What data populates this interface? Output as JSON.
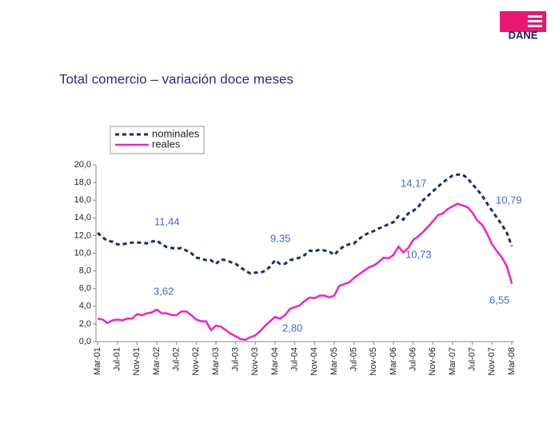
{
  "logo": "DANE",
  "chart_data": {
    "type": "line",
    "title": "Total comercio – variación doce meses",
    "categories": [
      "Mar-01",
      null,
      null,
      null,
      "Jul-01",
      null,
      null,
      null,
      "Nov-01",
      null,
      null,
      null,
      "Mar-02",
      null,
      null,
      null,
      "Jul-02",
      null,
      null,
      null,
      "Nov-02",
      null,
      null,
      null,
      "Mar-03",
      null,
      null,
      null,
      "Jul-03",
      null,
      null,
      null,
      "Nov-03",
      null,
      null,
      null,
      "Mar-04",
      null,
      null,
      null,
      "Jul-04",
      null,
      null,
      null,
      "Nov-04",
      null,
      null,
      null,
      "Mar-05",
      null,
      null,
      null,
      "Jul-05",
      null,
      null,
      null,
      "Nov-05",
      null,
      null,
      null,
      "Mar-06",
      null,
      null,
      null,
      "Jul-06",
      null,
      null,
      null,
      "Nov-06",
      null,
      null,
      null,
      "Mar-07",
      null,
      null,
      null,
      "Jul-07",
      null,
      null,
      null,
      "Nov-07",
      null,
      null,
      null,
      "Mar-08"
    ],
    "series": [
      {
        "name": "nominales",
        "color": "#1a2a6c",
        "line_style": "dashed",
        "values": [
          12.3,
          11.8,
          11.4,
          11.3,
          11.0,
          11.0,
          11.1,
          11.2,
          11.2,
          11.2,
          11.1,
          11.3,
          11.44,
          11.0,
          10.7,
          10.6,
          10.5,
          10.6,
          10.3,
          10.0,
          9.5,
          9.4,
          9.2,
          9.2,
          8.8,
          9.3,
          9.2,
          9.0,
          8.8,
          8.4,
          8.0,
          7.7,
          7.8,
          7.8,
          8.0,
          8.5,
          9.2,
          8.8,
          8.8,
          9.2,
          9.35,
          9.5,
          9.8,
          10.3,
          10.2,
          10.4,
          10.3,
          10.2,
          9.8,
          10.4,
          10.8,
          11.0,
          11.1,
          11.6,
          12.0,
          12.3,
          12.5,
          12.8,
          13.0,
          13.3,
          13.5,
          14.17,
          13.8,
          14.5,
          14.8,
          15.2,
          16.0,
          16.5,
          17.0,
          17.5,
          18.0,
          18.4,
          18.8,
          18.9,
          18.9,
          18.5,
          17.8,
          17.2,
          16.5,
          15.6,
          14.8,
          14.0,
          13.2,
          12.3,
          10.79
        ]
      },
      {
        "name": "reales",
        "color": "#ee22cc",
        "line_style": "solid",
        "values": [
          2.6,
          2.5,
          2.1,
          2.4,
          2.5,
          2.4,
          2.6,
          2.6,
          3.1,
          3.0,
          3.2,
          3.3,
          3.62,
          3.2,
          3.2,
          3.0,
          3.0,
          3.4,
          3.4,
          3.0,
          2.5,
          2.3,
          2.3,
          1.3,
          1.8,
          1.7,
          1.3,
          0.9,
          0.6,
          0.3,
          0.2,
          0.5,
          0.7,
          1.2,
          1.8,
          2.3,
          2.8,
          2.6,
          3.0,
          3.7,
          3.9,
          4.1,
          4.6,
          5.0,
          4.9,
          5.2,
          5.2,
          5.0,
          5.2,
          6.3,
          6.5,
          6.7,
          7.2,
          7.6,
          8.0,
          8.4,
          8.6,
          9.0,
          9.5,
          9.4,
          9.8,
          10.73,
          10.1,
          10.6,
          11.5,
          11.9,
          12.4,
          13.0,
          13.6,
          14.3,
          14.5,
          15.0,
          15.3,
          15.6,
          15.4,
          15.2,
          14.6,
          13.7,
          13.2,
          12.2,
          11.0,
          10.2,
          9.5,
          8.5,
          6.55
        ]
      }
    ],
    "ylim": [
      0,
      20
    ],
    "yticks": [
      {
        "value": 0,
        "label": "0,0"
      },
      {
        "value": 2,
        "label": "2,0"
      },
      {
        "value": 4,
        "label": "4,0"
      },
      {
        "value": 6,
        "label": "6,0"
      },
      {
        "value": 8,
        "label": "8,0"
      },
      {
        "value": 10,
        "label": "10,0"
      },
      {
        "value": 12,
        "label": "12,0"
      },
      {
        "value": 14,
        "label": "14,0"
      },
      {
        "value": 16,
        "label": "16,0"
      },
      {
        "value": 18,
        "label": "18,0"
      },
      {
        "value": 20,
        "label": "20,0"
      }
    ],
    "annotations": [
      "11,44",
      "9,35",
      "14,17",
      "10,79",
      "3,62",
      "2,80",
      "10,73",
      "6,55"
    ],
    "legend": "top-left",
    "grid": false
  }
}
